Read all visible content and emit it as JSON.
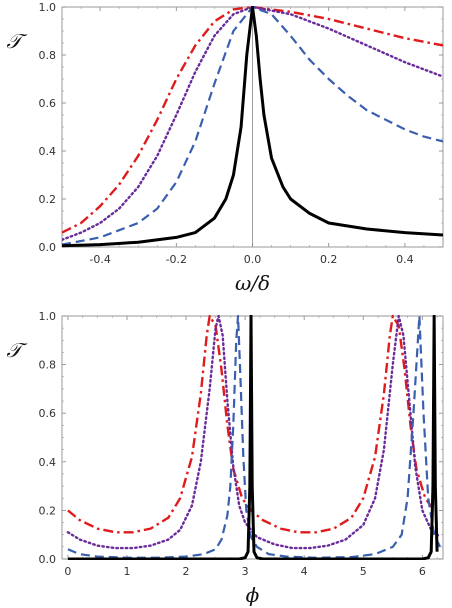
{
  "chart_data": [
    {
      "type": "line",
      "xlabel": "ω/δ",
      "ylabel": "𝒯",
      "xlim": [
        -0.5,
        0.5
      ],
      "ylim": [
        0,
        1.0
      ],
      "x_ticks": [
        "-0.4",
        "-0.2",
        "0.0",
        "0.2",
        "0.4"
      ],
      "x_tick_values": [
        -0.4,
        -0.2,
        0.0,
        0.2,
        0.4
      ],
      "y_ticks": [
        "0.0",
        "0.2",
        "0.4",
        "0.6",
        "0.8",
        "1.0"
      ],
      "y_tick_values": [
        0.0,
        0.2,
        0.4,
        0.6,
        0.8,
        1.0
      ],
      "grid": false,
      "series": [
        {
          "style": "solid",
          "color": "#000000",
          "points": [
            [
              -0.5,
              0.005
            ],
            [
              -0.4,
              0.01
            ],
            [
              -0.3,
              0.02
            ],
            [
              -0.2,
              0.04
            ],
            [
              -0.15,
              0.06
            ],
            [
              -0.1,
              0.12
            ],
            [
              -0.07,
              0.2
            ],
            [
              -0.05,
              0.3
            ],
            [
              -0.03,
              0.5
            ],
            [
              -0.015,
              0.8
            ],
            [
              0,
              1.0
            ],
            [
              0.01,
              0.88
            ],
            [
              0.02,
              0.7
            ],
            [
              0.03,
              0.55
            ],
            [
              0.05,
              0.37
            ],
            [
              0.08,
              0.25
            ],
            [
              0.1,
              0.2
            ],
            [
              0.15,
              0.14
            ],
            [
              0.2,
              0.1
            ],
            [
              0.3,
              0.075
            ],
            [
              0.4,
              0.06
            ],
            [
              0.5,
              0.05
            ]
          ]
        },
        {
          "style": "dashed",
          "color": "#3a5fb0",
          "points": [
            [
              -0.5,
              0.01
            ],
            [
              -0.4,
              0.04
            ],
            [
              -0.3,
              0.1
            ],
            [
              -0.25,
              0.16
            ],
            [
              -0.2,
              0.27
            ],
            [
              -0.15,
              0.44
            ],
            [
              -0.1,
              0.68
            ],
            [
              -0.05,
              0.9
            ],
            [
              0,
              1.0
            ],
            [
              0.05,
              0.97
            ],
            [
              0.1,
              0.88
            ],
            [
              0.15,
              0.78
            ],
            [
              0.2,
              0.7
            ],
            [
              0.25,
              0.63
            ],
            [
              0.3,
              0.57
            ],
            [
              0.35,
              0.53
            ],
            [
              0.4,
              0.49
            ],
            [
              0.45,
              0.46
            ],
            [
              0.5,
              0.44
            ]
          ]
        },
        {
          "style": "dotted",
          "color": "#6a2c9a",
          "points": [
            [
              -0.5,
              0.03
            ],
            [
              -0.45,
              0.06
            ],
            [
              -0.4,
              0.1
            ],
            [
              -0.35,
              0.16
            ],
            [
              -0.3,
              0.25
            ],
            [
              -0.25,
              0.38
            ],
            [
              -0.2,
              0.55
            ],
            [
              -0.15,
              0.73
            ],
            [
              -0.1,
              0.88
            ],
            [
              -0.05,
              0.97
            ],
            [
              0,
              1.0
            ],
            [
              0.1,
              0.97
            ],
            [
              0.2,
              0.91
            ],
            [
              0.3,
              0.84
            ],
            [
              0.4,
              0.77
            ],
            [
              0.5,
              0.71
            ]
          ]
        },
        {
          "style": "dashdot",
          "color": "#e01b1b",
          "points": [
            [
              -0.5,
              0.06
            ],
            [
              -0.45,
              0.1
            ],
            [
              -0.4,
              0.17
            ],
            [
              -0.35,
              0.26
            ],
            [
              -0.3,
              0.38
            ],
            [
              -0.25,
              0.53
            ],
            [
              -0.2,
              0.7
            ],
            [
              -0.15,
              0.84
            ],
            [
              -0.1,
              0.94
            ],
            [
              -0.05,
              0.99
            ],
            [
              0,
              1.0
            ],
            [
              0.1,
              0.98
            ],
            [
              0.2,
              0.95
            ],
            [
              0.3,
              0.91
            ],
            [
              0.4,
              0.87
            ],
            [
              0.5,
              0.84
            ]
          ]
        }
      ]
    },
    {
      "type": "line",
      "xlabel": "ϕ",
      "ylabel": "𝒯",
      "xlim": [
        -0.1,
        6.35
      ],
      "ylim": [
        0,
        1.0
      ],
      "x_ticks": [
        "0",
        "1",
        "2",
        "3",
        "4",
        "5",
        "6"
      ],
      "x_tick_values": [
        0,
        1,
        2,
        3,
        4,
        5,
        6
      ],
      "y_ticks": [
        "0.0",
        "0.2",
        "0.4",
        "0.6",
        "0.8",
        "1.0"
      ],
      "y_tick_values": [
        0.0,
        0.2,
        0.4,
        0.6,
        0.8,
        1.0
      ],
      "grid": false,
      "series": [
        {
          "style": "solid",
          "color": "#000000",
          "points": [
            [
              0,
              0
            ],
            [
              2.9,
              0
            ],
            [
              3.0,
              0.005
            ],
            [
              3.05,
              0.03
            ],
            [
              3.08,
              0.3
            ],
            [
              3.1,
              1.0
            ],
            [
              3.12,
              0.3
            ],
            [
              3.15,
              0.03
            ],
            [
              3.2,
              0.005
            ],
            [
              3.3,
              0
            ],
            [
              6.0,
              0
            ],
            [
              6.1,
              0.005
            ],
            [
              6.15,
              0.03
            ],
            [
              6.18,
              0.3
            ],
            [
              6.2,
              1.0
            ],
            [
              6.22,
              0.3
            ],
            [
              6.25,
              0.03
            ]
          ]
        },
        {
          "style": "dashed",
          "color": "#3a5fb0",
          "points": [
            [
              0,
              0.04
            ],
            [
              0.2,
              0.02
            ],
            [
              0.5,
              0.01
            ],
            [
              1,
              0.005
            ],
            [
              1.5,
              0.005
            ],
            [
              2,
              0.01
            ],
            [
              2.3,
              0.02
            ],
            [
              2.5,
              0.04
            ],
            [
              2.6,
              0.08
            ],
            [
              2.7,
              0.18
            ],
            [
              2.75,
              0.3
            ],
            [
              2.8,
              0.55
            ],
            [
              2.85,
              0.9
            ],
            [
              2.88,
              1.0
            ],
            [
              2.92,
              0.75
            ],
            [
              2.97,
              0.42
            ],
            [
              3.02,
              0.2
            ],
            [
              3.1,
              0.09
            ],
            [
              3.2,
              0.05
            ],
            [
              3.4,
              0.02
            ],
            [
              3.7,
              0.01
            ],
            [
              4.2,
              0.005
            ],
            [
              4.8,
              0.008
            ],
            [
              5.2,
              0.02
            ],
            [
              5.5,
              0.05
            ],
            [
              5.65,
              0.1
            ],
            [
              5.75,
              0.25
            ],
            [
              5.85,
              0.6
            ],
            [
              5.95,
              1.0
            ],
            [
              6.02,
              0.6
            ],
            [
              6.1,
              0.25
            ],
            [
              6.2,
              0.1
            ],
            [
              6.3,
              0.05
            ]
          ]
        },
        {
          "style": "dotted",
          "color": "#6a2c9a",
          "points": [
            [
              0,
              0.11
            ],
            [
              0.2,
              0.08
            ],
            [
              0.5,
              0.055
            ],
            [
              0.8,
              0.045
            ],
            [
              1.1,
              0.045
            ],
            [
              1.4,
              0.055
            ],
            [
              1.7,
              0.08
            ],
            [
              1.9,
              0.12
            ],
            [
              2.1,
              0.22
            ],
            [
              2.25,
              0.4
            ],
            [
              2.4,
              0.7
            ],
            [
              2.5,
              0.95
            ],
            [
              2.55,
              1.0
            ],
            [
              2.62,
              0.92
            ],
            [
              2.7,
              0.65
            ],
            [
              2.8,
              0.38
            ],
            [
              2.9,
              0.22
            ],
            [
              3.0,
              0.15
            ],
            [
              3.2,
              0.09
            ],
            [
              3.5,
              0.06
            ],
            [
              3.8,
              0.045
            ],
            [
              4.1,
              0.045
            ],
            [
              4.4,
              0.055
            ],
            [
              4.7,
              0.08
            ],
            [
              5.0,
              0.14
            ],
            [
              5.2,
              0.25
            ],
            [
              5.35,
              0.45
            ],
            [
              5.5,
              0.8
            ],
            [
              5.6,
              1.0
            ],
            [
              5.68,
              0.92
            ],
            [
              5.78,
              0.65
            ],
            [
              5.88,
              0.38
            ],
            [
              6.0,
              0.2
            ],
            [
              6.15,
              0.12
            ],
            [
              6.3,
              0.09
            ]
          ]
        },
        {
          "style": "dashdot",
          "color": "#e01b1b",
          "points": [
            [
              0,
              0.2
            ],
            [
              0.2,
              0.16
            ],
            [
              0.5,
              0.125
            ],
            [
              0.8,
              0.11
            ],
            [
              1.1,
              0.11
            ],
            [
              1.4,
              0.125
            ],
            [
              1.7,
              0.17
            ],
            [
              1.9,
              0.25
            ],
            [
              2.1,
              0.42
            ],
            [
              2.25,
              0.68
            ],
            [
              2.35,
              0.92
            ],
            [
              2.4,
              1.0
            ],
            [
              2.5,
              0.96
            ],
            [
              2.6,
              0.78
            ],
            [
              2.7,
              0.55
            ],
            [
              2.8,
              0.37
            ],
            [
              2.95,
              0.25
            ],
            [
              3.1,
              0.2
            ],
            [
              3.3,
              0.16
            ],
            [
              3.6,
              0.125
            ],
            [
              3.9,
              0.11
            ],
            [
              4.2,
              0.11
            ],
            [
              4.5,
              0.125
            ],
            [
              4.8,
              0.17
            ],
            [
              5.0,
              0.25
            ],
            [
              5.2,
              0.42
            ],
            [
              5.35,
              0.68
            ],
            [
              5.45,
              0.92
            ],
            [
              5.5,
              1.0
            ],
            [
              5.6,
              0.96
            ],
            [
              5.7,
              0.78
            ],
            [
              5.8,
              0.55
            ],
            [
              5.9,
              0.37
            ],
            [
              6.05,
              0.25
            ],
            [
              6.2,
              0.2
            ]
          ]
        }
      ]
    }
  ]
}
